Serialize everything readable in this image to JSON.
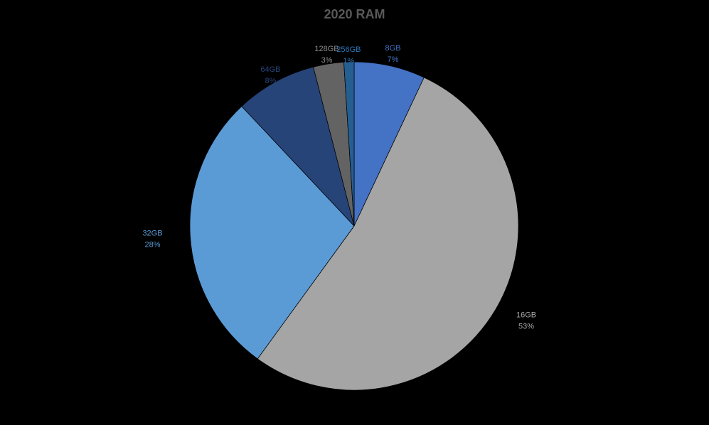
{
  "chart_data": {
    "type": "pie",
    "title": "2020 RAM",
    "slices": [
      {
        "label": "8GB",
        "percent_label": "7%",
        "value": 7,
        "color": "#4472C4",
        "label_color": "#4472C4"
      },
      {
        "label": "16GB",
        "percent_label": "53%",
        "value": 53,
        "color": "#A5A5A5",
        "label_color": "#A5A5A5"
      },
      {
        "label": "32GB",
        "percent_label": "28%",
        "value": 28,
        "color": "#5B9BD5",
        "label_color": "#5B9BD5"
      },
      {
        "label": "64GB",
        "percent_label": "8%",
        "value": 8,
        "color": "#264478",
        "label_color": "#264478"
      },
      {
        "label": "128GB",
        "percent_label": "3%",
        "value": 3,
        "color": "#636363",
        "label_color": "#8C8C8C"
      },
      {
        "label": "256GB",
        "percent_label": "1%",
        "value": 1,
        "color": "#255E91",
        "label_color": "#2E75B6"
      }
    ],
    "legend": "none",
    "background": "#000000",
    "start": "top, clockwise"
  }
}
